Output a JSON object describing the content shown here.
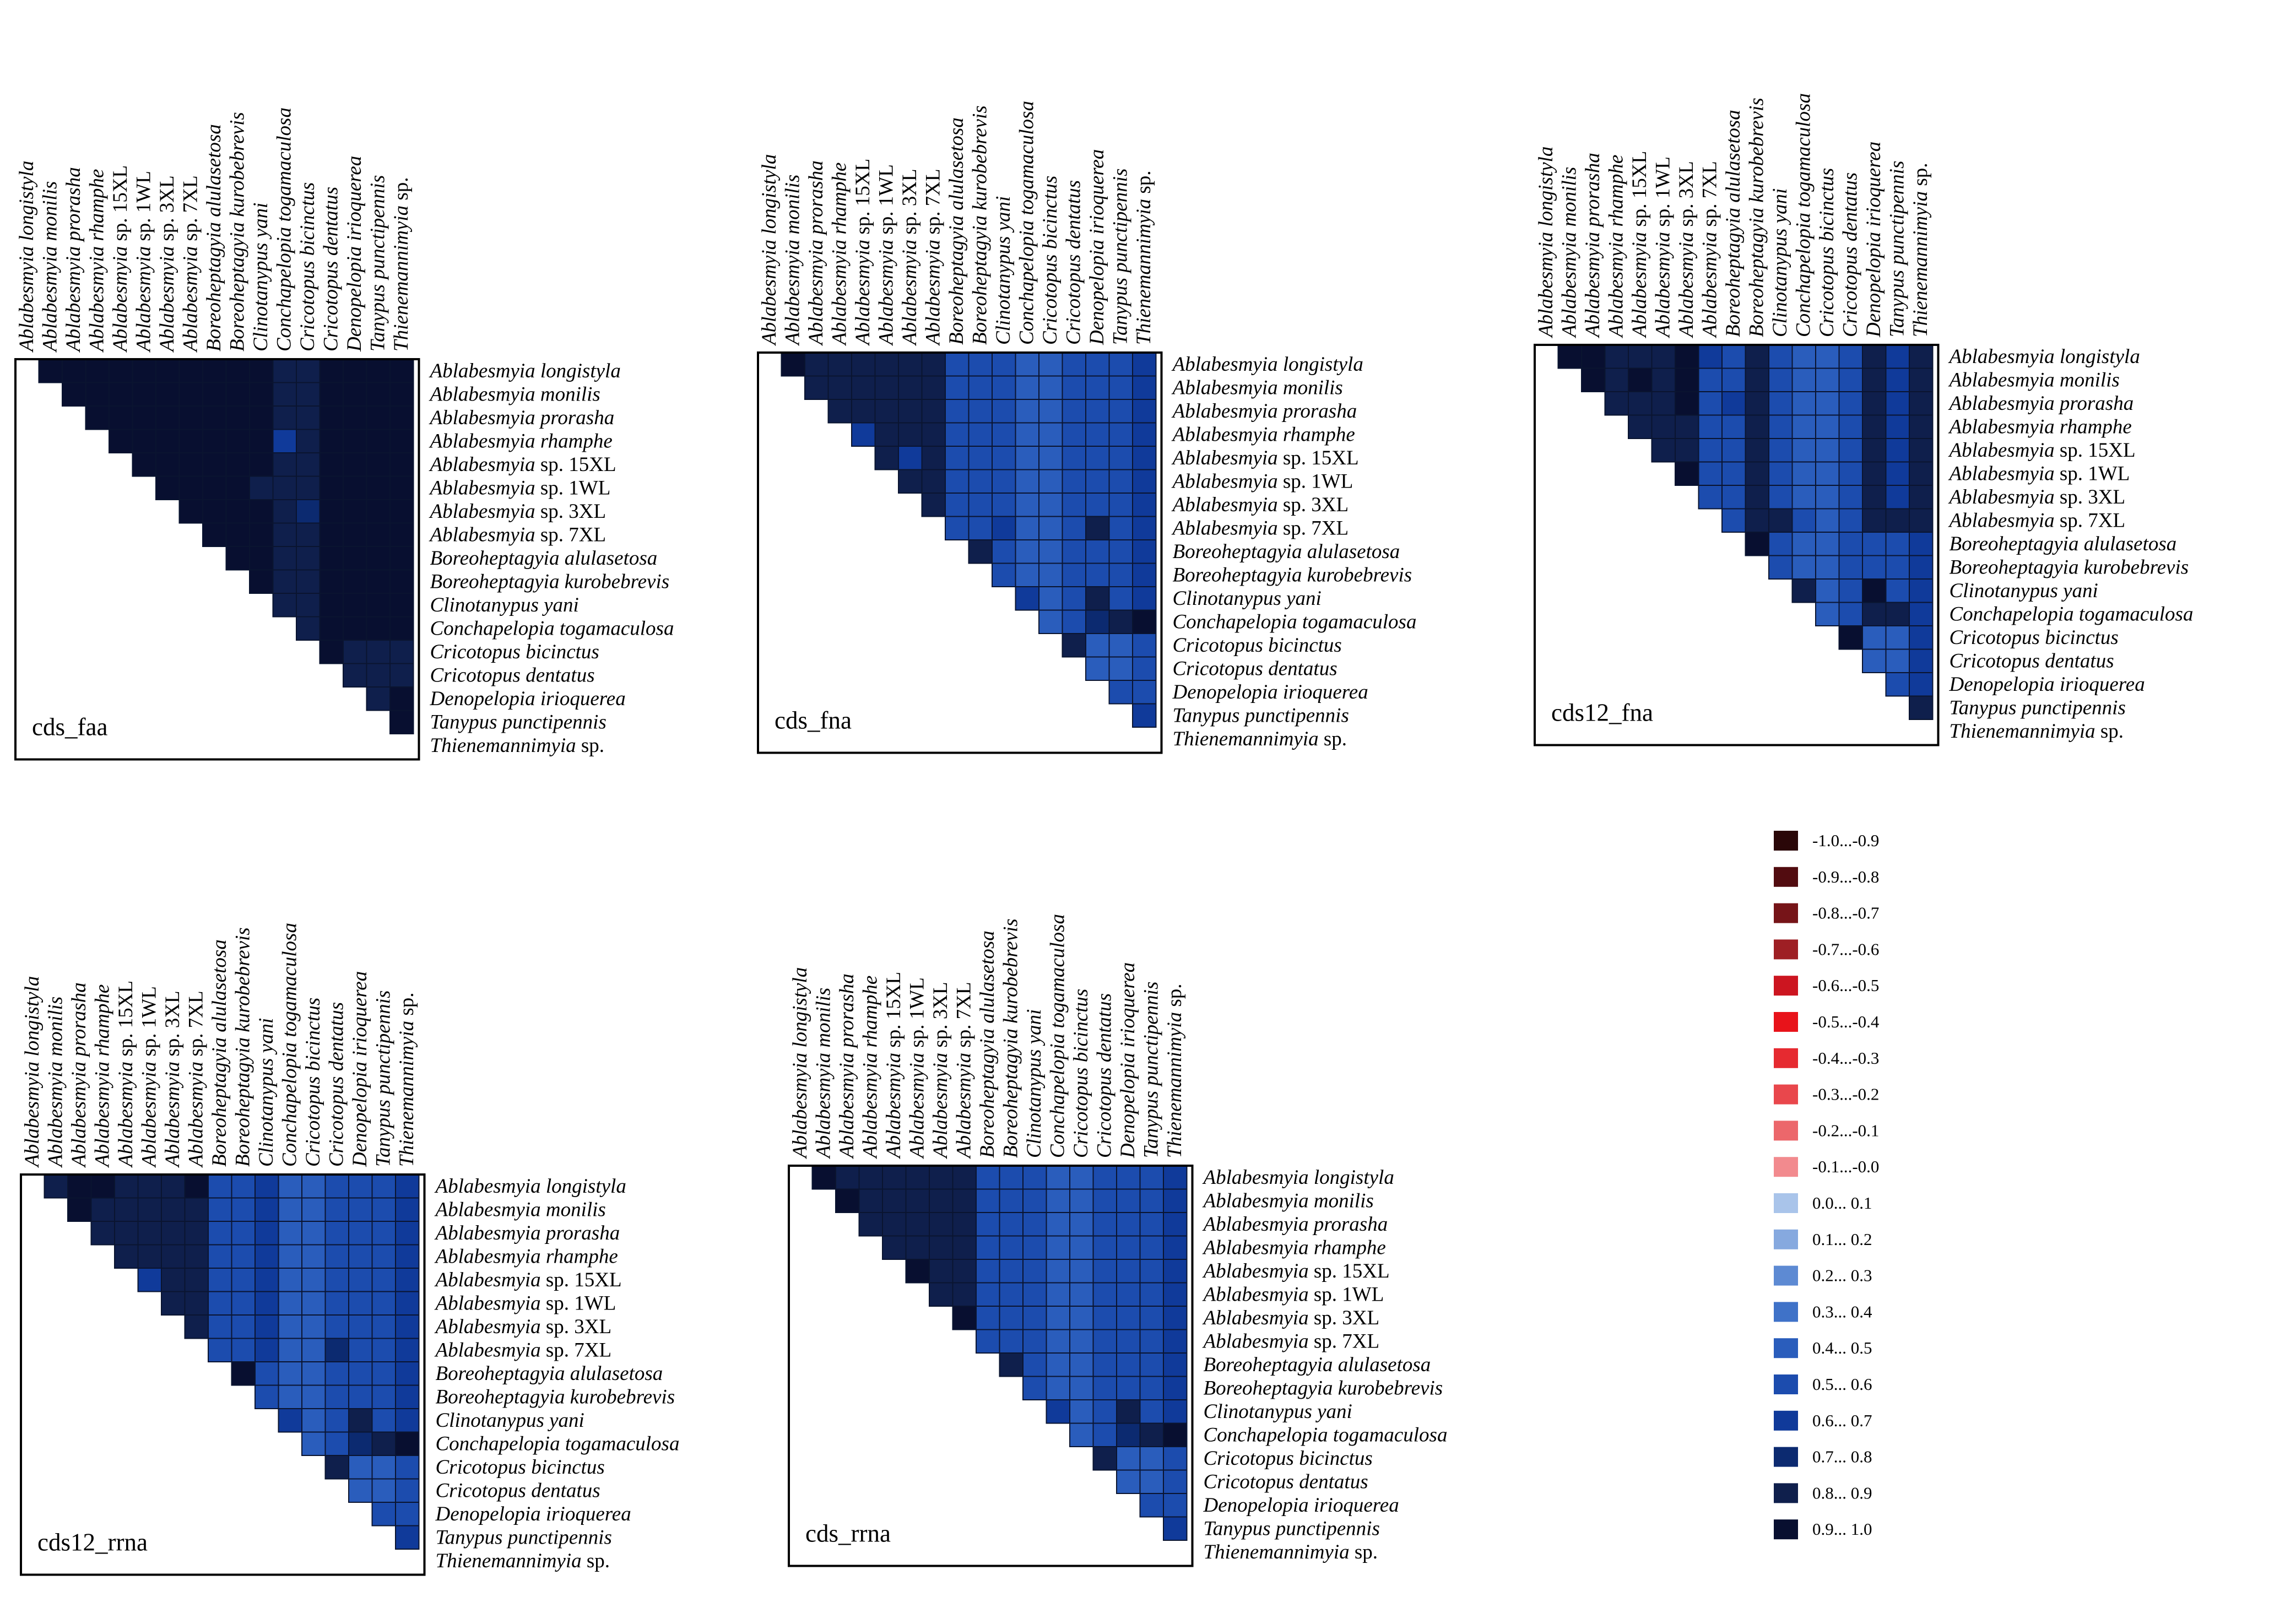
{
  "species": [
    {
      "genus": "Ablabesmyia",
      "epithet": "longistyla",
      "italic": true
    },
    {
      "genus": "Ablabesmyia",
      "epithet": "monilis",
      "italic": true
    },
    {
      "genus": "Ablabesmyia",
      "epithet": "prorasha",
      "italic": true
    },
    {
      "genus": "Ablabesmyia",
      "epithet": "rhamphe",
      "italic": true
    },
    {
      "genus": "Ablabesmyia",
      "epithet": "sp. 15XL",
      "italic": false
    },
    {
      "genus": "Ablabesmyia",
      "epithet": "sp. 1WL",
      "italic": false
    },
    {
      "genus": "Ablabesmyia",
      "epithet": "sp. 3XL",
      "italic": false
    },
    {
      "genus": "Ablabesmyia",
      "epithet": "sp. 7XL",
      "italic": false
    },
    {
      "genus": "Boreoheptagyia",
      "epithet": "alulasetosa",
      "italic": true
    },
    {
      "genus": "Boreoheptagyia",
      "epithet": "kurobebrevis",
      "italic": true
    },
    {
      "genus": "Clinotanypus",
      "epithet": "yani",
      "italic": true
    },
    {
      "genus": "Conchapelopia",
      "epithet": "togamaculosa",
      "italic": true
    },
    {
      "genus": "Cricotopus",
      "epithet": "bicinctus",
      "italic": true
    },
    {
      "genus": "Cricotopus",
      "epithet": "dentatus",
      "italic": true
    },
    {
      "genus": "Denopelopia",
      "epithet": "irioquerea",
      "italic": true
    },
    {
      "genus": "Tanypus",
      "epithet": "punctipennis",
      "italic": true
    },
    {
      "genus": "Thienemannimyia",
      "epithet": "sp.",
      "italic": false
    }
  ],
  "colors": {
    "blue": [
      "#a9c4ea",
      "#86a9df",
      "#5d8ad3",
      "#3f72c8",
      "#2a5dbc",
      "#1c4cae",
      "#103a9a",
      "#0c2a70",
      "#0f1f4c",
      "#080f30"
    ],
    "red": [
      "#f7b3b8",
      "#f28a8e",
      "#ec676b",
      "#e9474c",
      "#e62a30",
      "#e8131a",
      "#cc1520",
      "#9e1f24",
      "#761418",
      "#520c10",
      "#2a0708"
    ]
  },
  "chart_data": [
    {
      "type": "heatmap",
      "title": "cds_faa",
      "matrix": "upper-triangular",
      "value_range": [
        -1.0,
        1.0
      ],
      "rows": [
        [
          0.98,
          0.98,
          0.98,
          0.98,
          0.98,
          0.98,
          0.98,
          0.98,
          0.98,
          0.98,
          0.88,
          0.88,
          0.98,
          0.98,
          0.98,
          0.98
        ],
        [
          0.98,
          0.98,
          0.98,
          0.98,
          0.98,
          0.98,
          0.98,
          0.98,
          0.98,
          0.88,
          0.88,
          0.98,
          0.98,
          0.98,
          0.98
        ],
        [
          0.98,
          0.98,
          0.98,
          0.98,
          0.98,
          0.98,
          0.98,
          0.98,
          0.88,
          0.88,
          0.98,
          0.98,
          0.98,
          0.98
        ],
        [
          0.98,
          0.98,
          0.98,
          0.98,
          0.98,
          0.98,
          0.98,
          0.65,
          0.88,
          0.98,
          0.98,
          0.98,
          0.98
        ],
        [
          0.98,
          0.98,
          0.98,
          0.98,
          0.98,
          0.98,
          0.88,
          0.88,
          0.98,
          0.98,
          0.98,
          0.98
        ],
        [
          0.98,
          0.98,
          0.98,
          0.98,
          0.88,
          0.88,
          0.88,
          0.98,
          0.98,
          0.98,
          0.98
        ],
        [
          0.98,
          0.98,
          0.98,
          0.98,
          0.88,
          0.72,
          0.98,
          0.98,
          0.98,
          0.98
        ],
        [
          0.98,
          0.98,
          0.98,
          0.88,
          0.88,
          0.98,
          0.98,
          0.98,
          0.98
        ],
        [
          0.98,
          0.98,
          0.88,
          0.88,
          0.98,
          0.98,
          0.98,
          0.98
        ],
        [
          0.98,
          0.88,
          0.88,
          0.98,
          0.98,
          0.98,
          0.98
        ],
        [
          0.88,
          0.88,
          0.98,
          0.98,
          0.98,
          0.98
        ],
        [
          0.88,
          0.98,
          0.98,
          0.98,
          0.98
        ],
        [
          0.98,
          0.88,
          0.88,
          0.88
        ],
        [
          0.88,
          0.88,
          0.88
        ],
        [
          0.88,
          0.98
        ],
        [
          0.98
        ]
      ]
    },
    {
      "type": "heatmap",
      "title": "cds_fna",
      "matrix": "upper-triangular",
      "value_range": [
        -1.0,
        1.0
      ],
      "rows": [
        [
          0.98,
          0.88,
          0.88,
          0.88,
          0.88,
          0.88,
          0.88,
          0.55,
          0.55,
          0.55,
          0.45,
          0.45,
          0.55,
          0.55,
          0.55,
          0.65
        ],
        [
          0.88,
          0.88,
          0.88,
          0.88,
          0.88,
          0.88,
          0.55,
          0.55,
          0.55,
          0.45,
          0.45,
          0.55,
          0.55,
          0.55,
          0.65
        ],
        [
          0.88,
          0.88,
          0.88,
          0.88,
          0.88,
          0.55,
          0.55,
          0.55,
          0.45,
          0.45,
          0.55,
          0.55,
          0.55,
          0.65
        ],
        [
          0.65,
          0.85,
          0.85,
          0.85,
          0.55,
          0.55,
          0.55,
          0.45,
          0.45,
          0.55,
          0.55,
          0.55,
          0.65
        ],
        [
          0.85,
          0.65,
          0.85,
          0.55,
          0.55,
          0.55,
          0.45,
          0.45,
          0.55,
          0.55,
          0.55,
          0.65
        ],
        [
          0.85,
          0.85,
          0.55,
          0.55,
          0.55,
          0.45,
          0.45,
          0.55,
          0.55,
          0.55,
          0.65
        ],
        [
          0.85,
          0.55,
          0.55,
          0.55,
          0.45,
          0.45,
          0.55,
          0.55,
          0.55,
          0.65
        ],
        [
          0.55,
          0.55,
          0.65,
          0.45,
          0.45,
          0.55,
          0.85,
          0.55,
          0.65
        ],
        [
          0.85,
          0.55,
          0.45,
          0.45,
          0.55,
          0.55,
          0.55,
          0.65
        ],
        [
          0.55,
          0.45,
          0.45,
          0.55,
          0.55,
          0.55,
          0.65
        ],
        [
          0.65,
          0.45,
          0.55,
          0.85,
          0.55,
          0.65
        ],
        [
          0.45,
          0.55,
          0.75,
          0.85,
          0.98
        ],
        [
          0.85,
          0.45,
          0.45,
          0.55
        ],
        [
          0.45,
          0.45,
          0.55
        ],
        [
          0.55,
          0.55
        ],
        [
          0.65
        ]
      ]
    },
    {
      "type": "heatmap",
      "title": "cds12_fna",
      "matrix": "upper-triangular",
      "value_range": [
        -1.0,
        1.0
      ],
      "rows": [
        [
          0.98,
          0.98,
          0.88,
          0.88,
          0.85,
          0.98,
          0.65,
          0.55,
          0.85,
          0.55,
          0.45,
          0.45,
          0.55,
          0.85,
          0.65,
          0.85
        ],
        [
          0.98,
          0.88,
          0.98,
          0.88,
          0.98,
          0.55,
          0.55,
          0.85,
          0.55,
          0.45,
          0.45,
          0.55,
          0.85,
          0.65,
          0.85
        ],
        [
          0.85,
          0.88,
          0.88,
          0.98,
          0.55,
          0.65,
          0.85,
          0.55,
          0.45,
          0.45,
          0.55,
          0.85,
          0.65,
          0.85
        ],
        [
          0.85,
          0.85,
          0.88,
          0.55,
          0.55,
          0.85,
          0.55,
          0.45,
          0.45,
          0.55,
          0.85,
          0.65,
          0.85
        ],
        [
          0.85,
          0.88,
          0.55,
          0.55,
          0.85,
          0.55,
          0.45,
          0.45,
          0.55,
          0.85,
          0.65,
          0.85
        ],
        [
          0.98,
          0.55,
          0.55,
          0.85,
          0.55,
          0.45,
          0.45,
          0.55,
          0.85,
          0.65,
          0.85
        ],
        [
          0.55,
          0.55,
          0.85,
          0.55,
          0.45,
          0.45,
          0.55,
          0.85,
          0.65,
          0.85
        ],
        [
          0.55,
          0.85,
          0.85,
          0.55,
          0.45,
          0.55,
          0.85,
          0.85,
          0.85
        ],
        [
          0.98,
          0.55,
          0.45,
          0.45,
          0.55,
          0.55,
          0.55,
          0.65
        ],
        [
          0.55,
          0.45,
          0.45,
          0.55,
          0.55,
          0.55,
          0.65
        ],
        [
          0.85,
          0.45,
          0.55,
          0.98,
          0.55,
          0.65
        ],
        [
          0.45,
          0.55,
          0.85,
          0.85,
          0.65
        ],
        [
          0.98,
          0.45,
          0.45,
          0.65
        ],
        [
          0.45,
          0.45,
          0.65
        ],
        [
          0.55,
          0.65
        ],
        [
          0.85
        ]
      ]
    },
    {
      "type": "heatmap",
      "title": "cds12_rrna",
      "matrix": "upper-triangular",
      "value_range": [
        -1.0,
        1.0
      ],
      "rows": [
        [
          0.88,
          0.98,
          0.98,
          0.88,
          0.88,
          0.88,
          0.98,
          0.55,
          0.55,
          0.65,
          0.45,
          0.45,
          0.55,
          0.55,
          0.55,
          0.65
        ],
        [
          0.98,
          0.88,
          0.88,
          0.88,
          0.88,
          0.88,
          0.55,
          0.55,
          0.65,
          0.45,
          0.45,
          0.55,
          0.55,
          0.55,
          0.65
        ],
        [
          0.88,
          0.88,
          0.88,
          0.88,
          0.88,
          0.55,
          0.55,
          0.65,
          0.45,
          0.45,
          0.55,
          0.55,
          0.55,
          0.65
        ],
        [
          0.88,
          0.88,
          0.88,
          0.88,
          0.55,
          0.55,
          0.65,
          0.45,
          0.45,
          0.55,
          0.55,
          0.55,
          0.65
        ],
        [
          0.65,
          0.88,
          0.88,
          0.55,
          0.55,
          0.65,
          0.45,
          0.45,
          0.55,
          0.55,
          0.55,
          0.65
        ],
        [
          0.88,
          0.88,
          0.55,
          0.55,
          0.65,
          0.45,
          0.45,
          0.55,
          0.55,
          0.55,
          0.65
        ],
        [
          0.88,
          0.55,
          0.55,
          0.65,
          0.45,
          0.45,
          0.55,
          0.55,
          0.55,
          0.65
        ],
        [
          0.55,
          0.55,
          0.65,
          0.45,
          0.45,
          0.75,
          0.55,
          0.55,
          0.65
        ],
        [
          0.98,
          0.55,
          0.45,
          0.45,
          0.55,
          0.55,
          0.55,
          0.65
        ],
        [
          0.55,
          0.45,
          0.45,
          0.55,
          0.55,
          0.55,
          0.65
        ],
        [
          0.65,
          0.45,
          0.55,
          0.85,
          0.55,
          0.65
        ],
        [
          0.45,
          0.55,
          0.75,
          0.85,
          0.98
        ],
        [
          0.85,
          0.45,
          0.45,
          0.55
        ],
        [
          0.45,
          0.45,
          0.55
        ],
        [
          0.55,
          0.55
        ],
        [
          0.65
        ]
      ]
    },
    {
      "type": "heatmap",
      "title": "cds_rrna",
      "matrix": "upper-triangular",
      "value_range": [
        -1.0,
        1.0
      ],
      "rows": [
        [
          0.98,
          0.85,
          0.85,
          0.85,
          0.85,
          0.85,
          0.85,
          0.55,
          0.55,
          0.55,
          0.45,
          0.45,
          0.55,
          0.55,
          0.55,
          0.65
        ],
        [
          0.98,
          0.85,
          0.85,
          0.85,
          0.85,
          0.85,
          0.55,
          0.55,
          0.55,
          0.45,
          0.45,
          0.55,
          0.55,
          0.55,
          0.65
        ],
        [
          0.85,
          0.85,
          0.85,
          0.85,
          0.85,
          0.55,
          0.55,
          0.55,
          0.45,
          0.45,
          0.55,
          0.55,
          0.55,
          0.65
        ],
        [
          0.85,
          0.85,
          0.85,
          0.85,
          0.55,
          0.55,
          0.55,
          0.45,
          0.45,
          0.55,
          0.55,
          0.55,
          0.65
        ],
        [
          0.98,
          0.85,
          0.85,
          0.55,
          0.55,
          0.55,
          0.45,
          0.45,
          0.55,
          0.55,
          0.55,
          0.65
        ],
        [
          0.85,
          0.85,
          0.55,
          0.55,
          0.55,
          0.45,
          0.45,
          0.55,
          0.55,
          0.55,
          0.65
        ],
        [
          0.98,
          0.55,
          0.55,
          0.55,
          0.45,
          0.45,
          0.55,
          0.55,
          0.55,
          0.65
        ],
        [
          0.55,
          0.55,
          0.55,
          0.45,
          0.45,
          0.55,
          0.55,
          0.55,
          0.65
        ],
        [
          0.85,
          0.55,
          0.45,
          0.45,
          0.55,
          0.55,
          0.55,
          0.65
        ],
        [
          0.55,
          0.45,
          0.45,
          0.55,
          0.55,
          0.55,
          0.65
        ],
        [
          0.65,
          0.45,
          0.55,
          0.85,
          0.55,
          0.65
        ],
        [
          0.45,
          0.55,
          0.75,
          0.85,
          0.98
        ],
        [
          0.85,
          0.45,
          0.45,
          0.55
        ],
        [
          0.45,
          0.45,
          0.55
        ],
        [
          0.55,
          0.55
        ],
        [
          0.65
        ]
      ]
    }
  ],
  "legend": {
    "items": [
      {
        "label": "-1.0...-0.9",
        "color": "#2a0708"
      },
      {
        "label": "-0.9...-0.8",
        "color": "#520c10"
      },
      {
        "label": "-0.8...-0.7",
        "color": "#761418"
      },
      {
        "label": "-0.7...-0.6",
        "color": "#9e1f24"
      },
      {
        "label": "-0.6...-0.5",
        "color": "#cc1520"
      },
      {
        "label": "-0.5...-0.4",
        "color": "#e8131a"
      },
      {
        "label": "-0.4...-0.3",
        "color": "#e62a30"
      },
      {
        "label": "-0.3...-0.2",
        "color": "#e9474c"
      },
      {
        "label": "-0.2...-0.1",
        "color": "#ec676b"
      },
      {
        "label": "-0.1...-0.0",
        "color": "#f28a8e"
      },
      {
        "label": "0.0... 0.1",
        "color": "#a9c4ea"
      },
      {
        "label": "0.1... 0.2",
        "color": "#86a9df"
      },
      {
        "label": "0.2... 0.3",
        "color": "#5d8ad3"
      },
      {
        "label": "0.3... 0.4",
        "color": "#3f72c8"
      },
      {
        "label": "0.4... 0.5",
        "color": "#2a5dbc"
      },
      {
        "label": "0.5... 0.6",
        "color": "#1c4cae"
      },
      {
        "label": "0.6... 0.7",
        "color": "#103a9a"
      },
      {
        "label": "0.7... 0.8",
        "color": "#0c2a70"
      },
      {
        "label": "0.8... 0.9",
        "color": "#0f1f4c"
      },
      {
        "label": "0.9... 1.0",
        "color": "#080f30"
      }
    ]
  }
}
